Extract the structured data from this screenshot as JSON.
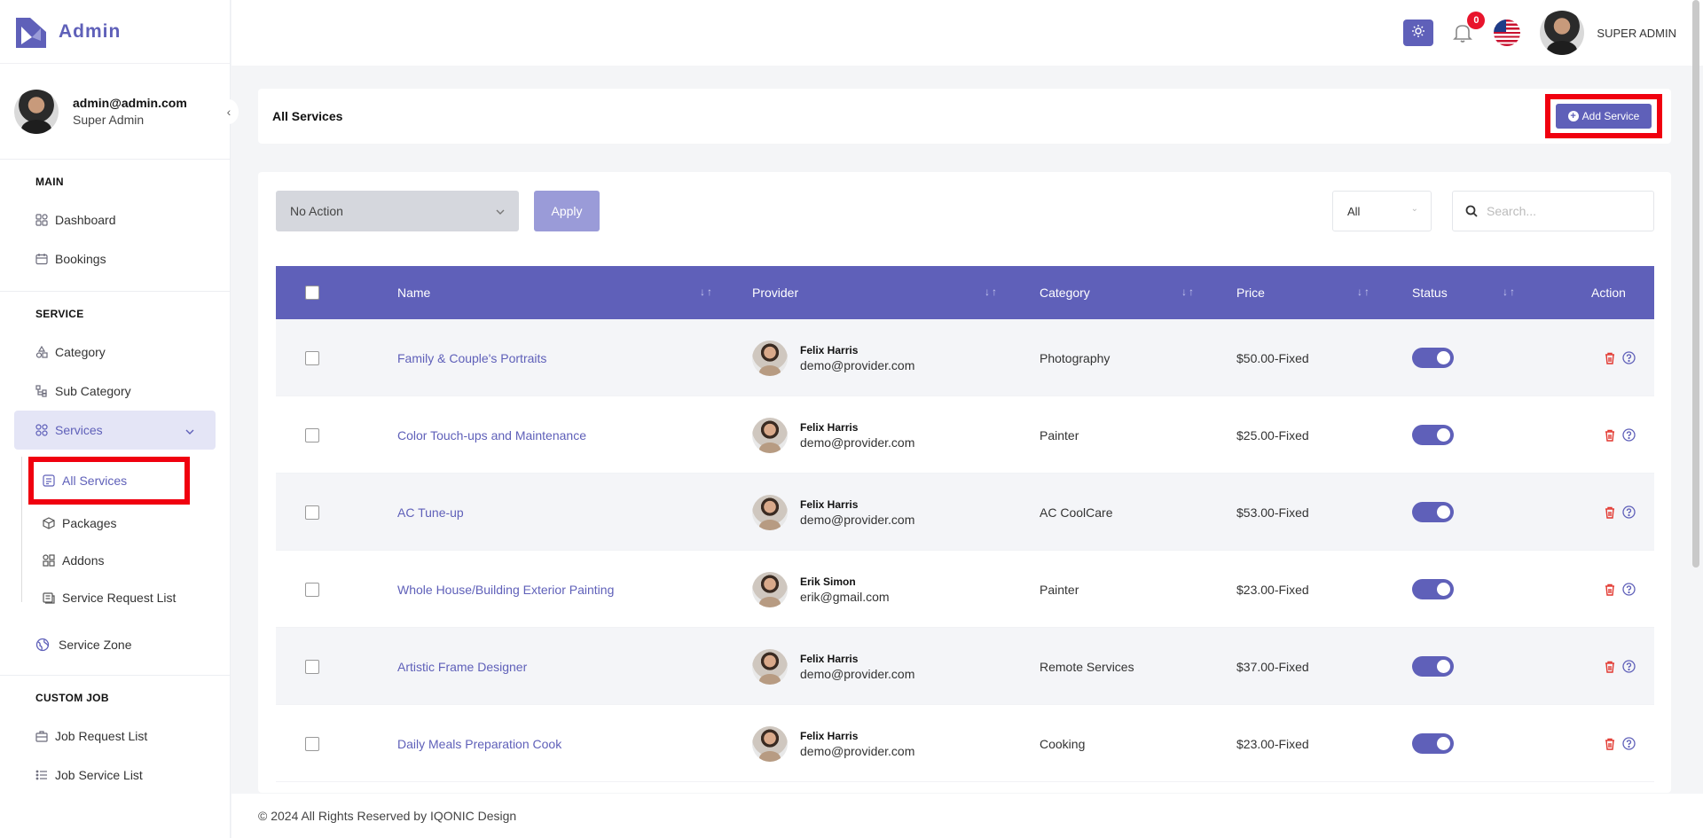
{
  "brand": {
    "name": "Admin"
  },
  "profile": {
    "email": "admin@admin.com",
    "role": "Super Admin"
  },
  "sidebar": {
    "main_title": "MAIN",
    "main_items": [
      {
        "label": "Dashboard",
        "icon": "grid-icon"
      },
      {
        "label": "Bookings",
        "icon": "calendar-icon"
      }
    ],
    "service_title": "SERVICE",
    "service_items": [
      {
        "label": "Category",
        "icon": "shapes-icon"
      },
      {
        "label": "Sub Category",
        "icon": "subcategory-icon"
      },
      {
        "label": "Services",
        "icon": "grid-icon"
      }
    ],
    "services_submenu": [
      {
        "label": "All Services",
        "icon": "list-icon"
      },
      {
        "label": "Packages",
        "icon": "package-icon"
      },
      {
        "label": "Addons",
        "icon": "addons-icon"
      },
      {
        "label": "Service Request List",
        "icon": "request-icon"
      }
    ],
    "zone": {
      "label": "Service Zone",
      "icon": "globe-icon"
    },
    "custom_title": "CUSTOM JOB",
    "custom_items": [
      {
        "label": "Job Request List",
        "icon": "briefcase-icon"
      },
      {
        "label": "Job Service List",
        "icon": "list-icon"
      }
    ]
  },
  "header": {
    "notification_count": "0",
    "user_name": "SUPER ADMIN"
  },
  "page": {
    "title": "All Services",
    "add_button": "Add Service"
  },
  "toolbar": {
    "bulk_action": "No Action",
    "apply": "Apply",
    "filter": "All",
    "search_placeholder": "Search..."
  },
  "table": {
    "columns": {
      "name": "Name",
      "provider": "Provider",
      "category": "Category",
      "price": "Price",
      "status": "Status",
      "action": "Action"
    },
    "sort_glyph": "↓↑",
    "rows": [
      {
        "name": "Family & Couple's Portraits",
        "provider": "Felix Harris",
        "email": "demo@provider.com",
        "category": "Photography",
        "price": "$50.00-Fixed",
        "status": true
      },
      {
        "name": "Color Touch-ups and Maintenance",
        "provider": "Felix Harris",
        "email": "demo@provider.com",
        "category": "Painter",
        "price": "$25.00-Fixed",
        "status": true
      },
      {
        "name": "AC Tune-up",
        "provider": "Felix Harris",
        "email": "demo@provider.com",
        "category": "AC CoolCare",
        "price": "$53.00-Fixed",
        "status": true
      },
      {
        "name": "Whole House/Building Exterior Painting",
        "provider": "Erik Simon",
        "email": "erik@gmail.com",
        "category": "Painter",
        "price": "$23.00-Fixed",
        "status": true
      },
      {
        "name": "Artistic Frame Designer",
        "provider": "Felix Harris",
        "email": "demo@provider.com",
        "category": "Remote Services",
        "price": "$37.00-Fixed",
        "status": true
      },
      {
        "name": "Daily Meals Preparation Cook",
        "provider": "Felix Harris",
        "email": "demo@provider.com",
        "category": "Cooking",
        "price": "$23.00-Fixed",
        "status": true
      }
    ]
  },
  "footer": {
    "text": "© 2024 All Rights Reserved by IQONIC Design"
  },
  "colors": {
    "primary": "#5f60b9",
    "highlight": "#f0000f",
    "danger": "#e2372f"
  }
}
